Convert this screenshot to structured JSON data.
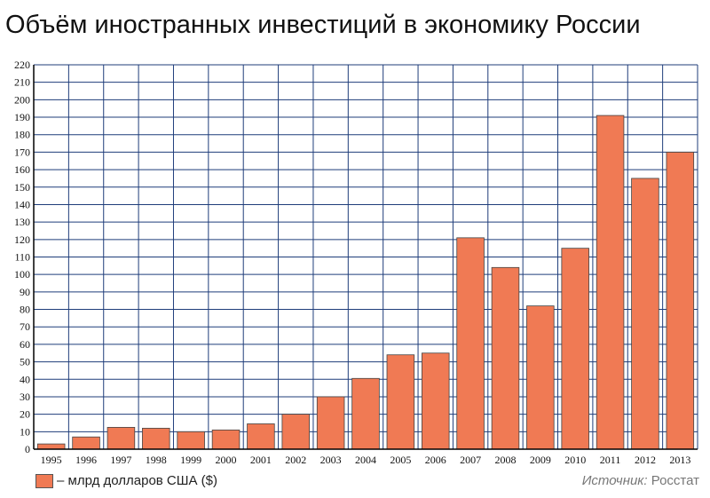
{
  "chart_data": {
    "type": "bar",
    "title": "Объём иностранных инвестиций в экономику России",
    "categories": [
      "1995",
      "1996",
      "1997",
      "1998",
      "1999",
      "2000",
      "2001",
      "2002",
      "2003",
      "2004",
      "2005",
      "2006",
      "2007",
      "2008",
      "2009",
      "2010",
      "2011",
      "2012",
      "2013"
    ],
    "series": [
      {
        "name": "– млрд долларов США ($)",
        "values": [
          3,
          7,
          12.5,
          12,
          10,
          11,
          14.5,
          20,
          30,
          40.5,
          54,
          55,
          121,
          104,
          82,
          115,
          191,
          155,
          170
        ]
      }
    ],
    "ylim": [
      0,
      220
    ],
    "yticks": [
      0,
      10,
      20,
      30,
      40,
      50,
      60,
      70,
      80,
      90,
      100,
      110,
      120,
      130,
      140,
      150,
      160,
      170,
      180,
      190,
      200,
      210,
      220
    ],
    "grid": true,
    "legend_position": "bottom-left",
    "colors": {
      "bar": "#f07a54",
      "bar_stroke": "#444444",
      "grid": "#1f3d7a",
      "axis": "#000000"
    }
  },
  "source": {
    "label": "Источник:",
    "value": "Росстат"
  }
}
